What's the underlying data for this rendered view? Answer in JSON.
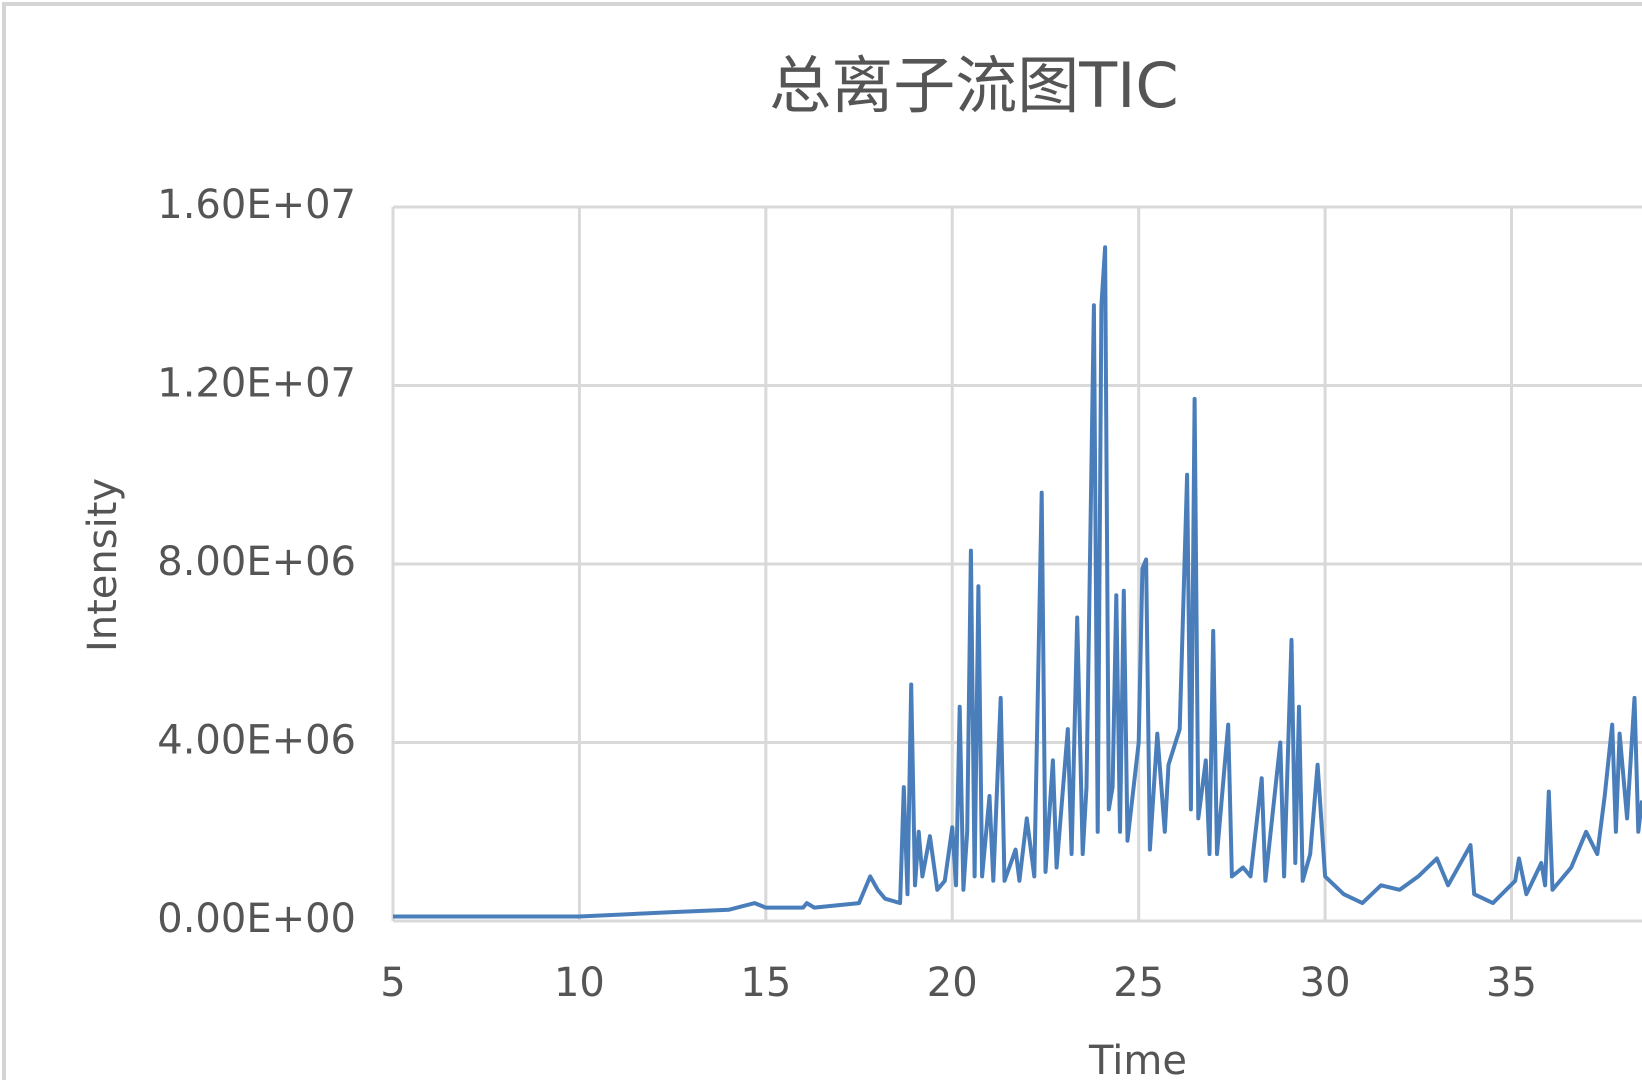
{
  "chart_data": {
    "type": "line",
    "title": "总离子流图TIC",
    "xlabel": "Time",
    "ylabel": "Intensity",
    "xlim": [
      5,
      38.5
    ],
    "xticks": [
      5,
      10,
      15,
      20,
      25,
      30,
      35
    ],
    "ylim": [
      0,
      16000000
    ],
    "yticks": [
      {
        "value": 0,
        "label": "0.00E+00"
      },
      {
        "value": 4000000,
        "label": "4.00E+06"
      },
      {
        "value": 8000000,
        "label": "8.00E+06"
      },
      {
        "value": 12000000,
        "label": "1.20E+07"
      },
      {
        "value": 16000000,
        "label": "1.60E+07"
      }
    ],
    "grid": true,
    "series": [
      {
        "name": "TIC",
        "color": "#4a7ebb",
        "x": [
          5,
          10,
          12.5,
          14,
          14.7,
          15,
          16,
          16.1,
          16.3,
          17.5,
          17.8,
          18,
          18.2,
          18.6,
          18.7,
          18.8,
          18.9,
          19.0,
          19.1,
          19.2,
          19.4,
          19.6,
          19.8,
          20.0,
          20.1,
          20.2,
          20.3,
          20.4,
          20.5,
          20.6,
          20.7,
          20.8,
          21.0,
          21.1,
          21.3,
          21.4,
          21.7,
          21.8,
          22.0,
          22.2,
          22.4,
          22.5,
          22.7,
          22.8,
          23.1,
          23.2,
          23.35,
          23.5,
          23.6,
          23.8,
          23.9,
          24.0,
          24.1,
          24.2,
          24.3,
          24.4,
          24.5,
          24.6,
          24.7,
          25.0,
          25.1,
          25.2,
          25.3,
          25.5,
          25.7,
          25.8,
          26.1,
          26.3,
          26.4,
          26.5,
          26.6,
          26.8,
          26.9,
          27.0,
          27.1,
          27.4,
          27.5,
          27.8,
          28.0,
          28.3,
          28.4,
          28.8,
          28.9,
          29.1,
          29.2,
          29.3,
          29.4,
          29.6,
          29.8,
          30.0,
          30.5,
          31.0,
          31.5,
          32.0,
          32.5,
          33.0,
          33.3,
          33.9,
          34.0,
          34.5,
          35.1,
          35.2,
          35.4,
          35.8,
          35.9,
          36.0,
          36.1,
          36.6,
          37.0,
          37.3,
          37.5,
          37.7,
          37.8,
          37.9,
          38.1,
          38.3,
          38.4,
          38.5
        ],
        "values": [
          100000.0,
          100000.0,
          200000.0,
          250000.0,
          400000.0,
          300000.0,
          300000.0,
          400000.0,
          300000.0,
          400000.0,
          1000000.0,
          700000.0,
          500000.0,
          400000.0,
          3000000.0,
          600000.0,
          5300000.0,
          800000.0,
          2000000.0,
          1000000.0,
          1900000.0,
          700000.0,
          900000.0,
          2100000.0,
          800000.0,
          4800000.0,
          700000.0,
          2000000.0,
          8300000.0,
          1000000.0,
          7500000.0,
          1000000.0,
          2800000.0,
          900000.0,
          5000000.0,
          900000.0,
          1600000.0,
          900000.0,
          2300000.0,
          1000000.0,
          9600000.0,
          1100000.0,
          3600000.0,
          1200000.0,
          4300000.0,
          1500000.0,
          6800000.0,
          1500000.0,
          3000000.0,
          13800000.0,
          2000000.0,
          13800000.0,
          15100000.0,
          2500000.0,
          3000000.0,
          7300000.0,
          2000000.0,
          7400000.0,
          1800000.0,
          4000000.0,
          7900000.0,
          8100000.0,
          1600000.0,
          4200000.0,
          2000000.0,
          3500000.0,
          4300000.0,
          10000000.0,
          2500000.0,
          11700000.0,
          2300000.0,
          3600000.0,
          1500000.0,
          6500000.0,
          1500000.0,
          4400000.0,
          1000000.0,
          1200000.0,
          1000000.0,
          3200000.0,
          900000.0,
          4000000.0,
          1000000.0,
          6300000.0,
          1300000.0,
          4800000.0,
          900000.0,
          1500000.0,
          3500000.0,
          1000000.0,
          600000.0,
          400000.0,
          800000.0,
          700000.0,
          1000000.0,
          1400000.0,
          800000.0,
          1700000.0,
          600000.0,
          400000.0,
          900000.0,
          1400000.0,
          600000.0,
          1300000.0,
          800000.0,
          2900000.0,
          700000.0,
          1200000.0,
          2000000.0,
          1500000.0,
          2800000.0,
          4400000.0,
          2000000.0,
          4200000.0,
          2300000.0,
          5000000.0,
          2000000.0,
          2700000.0
        ]
      }
    ]
  }
}
